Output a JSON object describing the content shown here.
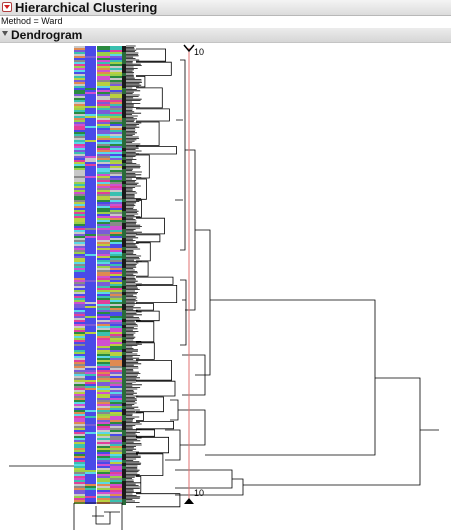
{
  "report": {
    "title": "Hierarchical Clustering",
    "method_label": "Method = Ward"
  },
  "dendrogram": {
    "section_title": "Dendrogram",
    "cluster_count_label_top": "10",
    "cluster_count_label_bottom": "10",
    "colors": {
      "reference_line": "#e07070",
      "tree": "#000000",
      "heat_palette": [
        "#4a4ae8",
        "#7a5cd8",
        "#3ac0b0",
        "#9bd04a",
        "#e0409a",
        "#c8c8c8",
        "#e08a50",
        "#5ad8e8",
        "#b8d040",
        "#d050d0",
        "#8a8a8a",
        "#2a8a40"
      ]
    }
  }
}
